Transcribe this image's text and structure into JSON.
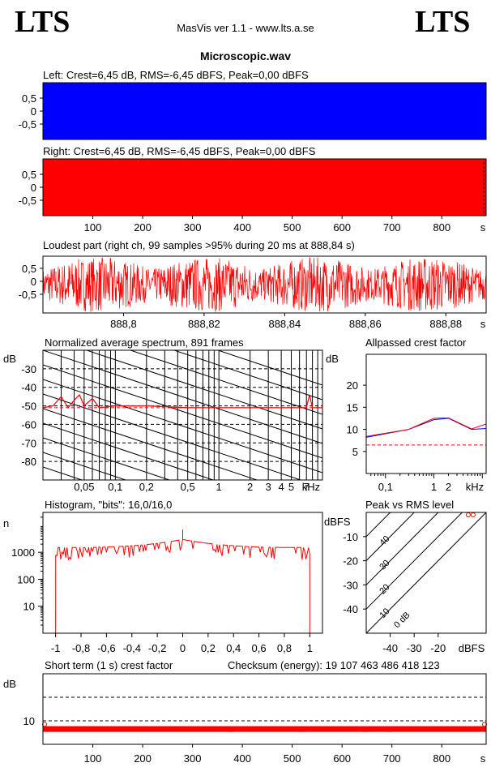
{
  "header": {
    "logo_left": "LTS",
    "logo_right": "LTS",
    "app_title": "MasVis ver 1.1 - www.lts.a.se",
    "file_name": "Microscopic.wav"
  },
  "colors": {
    "left": "#0000ff",
    "right": "#ff0000",
    "grid": "#000000"
  },
  "chart_data": [
    {
      "id": "left_wave",
      "type": "area",
      "title": "Left: Crest=6,45 dB, RMS=-6,45 dBFS, Peak=0,00 dBFS",
      "yticks": [
        "0,5",
        "0",
        "-0,5"
      ],
      "ylim": [
        -1,
        1
      ],
      "xlim": [
        0,
        889
      ],
      "fill": "full"
    },
    {
      "id": "right_wave",
      "type": "area",
      "title": "Right: Crest=6,45 dB, RMS=-6,45 dBFS, Peak=0,00 dBFS",
      "yticks": [
        "0,5",
        "0",
        "-0,5"
      ],
      "ylim": [
        -1,
        1
      ],
      "xticks": [
        "100",
        "200",
        "300",
        "400",
        "500",
        "600",
        "700",
        "800"
      ],
      "xunit": "s",
      "xlim": [
        0,
        889
      ],
      "fill": "full"
    },
    {
      "id": "loudest",
      "type": "line",
      "title": "Loudest part (right ch, 99 samples >95% during 20 ms at 888,84 s)",
      "yticks": [
        "0,5",
        "0",
        "-0,5"
      ],
      "ylim": [
        -1,
        1
      ],
      "xticks": [
        "888,8",
        "888,82",
        "888,84",
        "888,86",
        "888,88"
      ],
      "xunit": "s",
      "xlim": [
        888.78,
        888.89
      ]
    },
    {
      "id": "spectrum",
      "type": "line",
      "title": "Normalized average spectrum, 891 frames",
      "ylabel": "dB",
      "yticks": [
        "-30",
        "-40",
        "-50",
        "-60",
        "-70",
        "-80"
      ],
      "ylim": [
        -90,
        -20
      ],
      "xticks": [
        "0,05",
        "0,1",
        "0,2",
        "0,5",
        "1",
        "2",
        "3",
        "4",
        "5",
        "7"
      ],
      "xunit": "kHz",
      "xscale": "log",
      "xlim": [
        0.02,
        10
      ],
      "series": [
        {
          "x": [
            0.02,
            0.025,
            0.03,
            0.035,
            0.04,
            0.045,
            0.05,
            0.06,
            0.07,
            0.1,
            0.2,
            0.5,
            1,
            2,
            5,
            7,
            7.5,
            8,
            10
          ],
          "y": [
            -51,
            -50,
            -45,
            -51,
            -47,
            -44,
            -50,
            -46,
            -51,
            -50,
            -50,
            -51,
            -51,
            -51,
            -51,
            -51,
            -44,
            -51,
            -51
          ]
        }
      ]
    },
    {
      "id": "crest",
      "type": "line",
      "title": "Allpassed crest factor",
      "ylabel": "dB",
      "yticks": [
        "20",
        "15",
        "10",
        "5"
      ],
      "ylim": [
        0,
        27
      ],
      "xticks": [
        "0,1",
        "1",
        "2"
      ],
      "xunit": "kHz",
      "xscale": "log",
      "xlim": [
        0.04,
        12
      ],
      "series": [
        {
          "name": "",
          "color": "left",
          "x": [
            0.04,
            0.3,
            1,
            2,
            6,
            12
          ],
          "y": [
            8.2,
            10,
            12.2,
            12.5,
            10,
            10.2
          ]
        },
        {
          "name": "",
          "color": "right",
          "x": [
            0.04,
            0.3,
            1,
            2,
            6,
            12
          ],
          "y": [
            8.4,
            10,
            12.5,
            12.6,
            10.1,
            11.2
          ]
        }
      ],
      "reference": 6.45
    },
    {
      "id": "histogram",
      "type": "line",
      "title": "Histogram, \"bits\": 16,0/16,0",
      "ylabel": "n",
      "yticks": [
        "1000",
        "100",
        "10"
      ],
      "yscale": "log",
      "ylim": [
        1,
        30000
      ],
      "xticks": [
        "-1",
        "-0,8",
        "-0,6",
        "-0,4",
        "-0,2",
        "0",
        "0,2",
        "0,4",
        "0,6",
        "0,8",
        "1"
      ],
      "xlim": [
        -1.1,
        1.1
      ],
      "series": [
        {
          "x": [
            -1,
            -0.6,
            -0.3,
            0,
            0.3,
            0.6,
            1
          ],
          "y": [
            1500,
            1700,
            2100,
            3000,
            2100,
            1700,
            1500
          ]
        }
      ]
    },
    {
      "id": "peak_rms",
      "type": "scatter",
      "title": "Peak vs RMS level",
      "ylabel": "dBFS",
      "yticks": [
        "-10",
        "-20",
        "-30",
        "-40"
      ],
      "ylim": [
        -50,
        0
      ],
      "xticks": [
        "-40",
        "-30",
        "-20"
      ],
      "xunit": "dBFS",
      "xlim": [
        -50,
        0
      ],
      "diagonal_labels": [
        "40",
        "30",
        "20",
        "10",
        "0 dB"
      ],
      "points": [
        {
          "x": -6.45,
          "y": 0
        }
      ]
    },
    {
      "id": "short_term",
      "type": "line",
      "title": "Short term (1 s) crest factor",
      "ylabel": "dB",
      "yticks": [
        "10"
      ],
      "ylim": [
        0,
        30
      ],
      "xticks": [
        "100",
        "200",
        "300",
        "400",
        "500",
        "600",
        "700",
        "800"
      ],
      "xunit": "s",
      "xlim": [
        0,
        889
      ],
      "series": [
        {
          "x": [
            0,
            889
          ],
          "y": [
            6.5,
            6.5
          ]
        }
      ]
    }
  ],
  "checksum": "Checksum (energy):  19 107 463 486 418 123"
}
